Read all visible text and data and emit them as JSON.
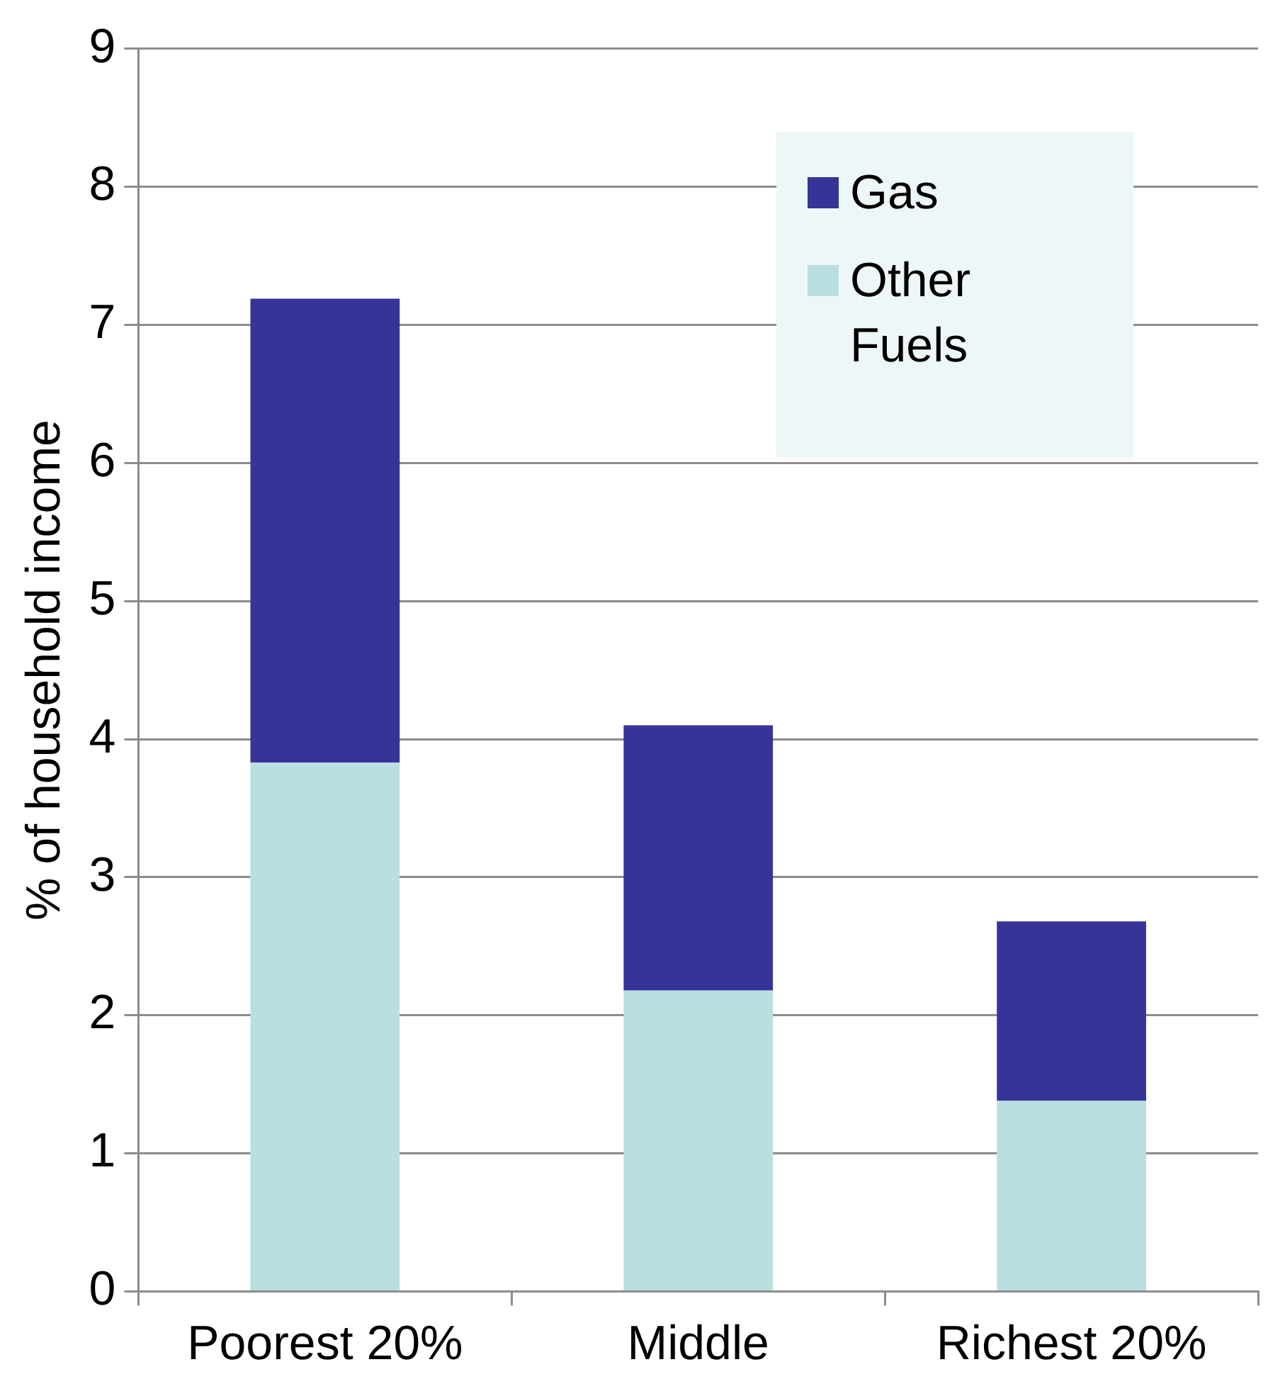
{
  "chart_data": {
    "type": "bar",
    "stacked": true,
    "ylabel": "% of household income",
    "categories": [
      "Poorest 20%",
      "Middle",
      "Richest 20%"
    ],
    "series": [
      {
        "name": "Other Fuels",
        "color": "#b9dfe2",
        "values": [
          3.83,
          2.18,
          1.38
        ]
      },
      {
        "name": "Gas",
        "color": "#363597",
        "values": [
          3.36,
          1.92,
          1.3
        ]
      }
    ],
    "ylim": [
      0,
      9
    ],
    "yticks": [
      0,
      1,
      2,
      3,
      4,
      5,
      6,
      7,
      8,
      9
    ],
    "grid": "y",
    "legend": "top right"
  }
}
